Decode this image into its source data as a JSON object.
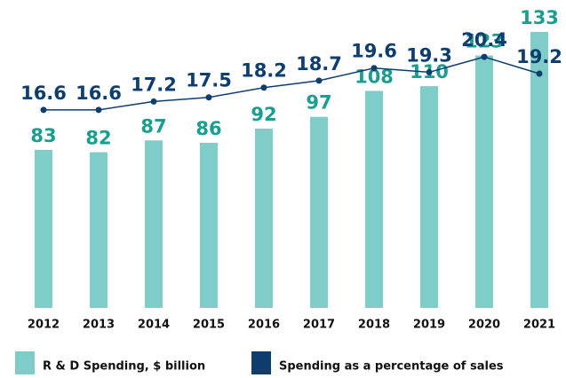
{
  "chart_data": {
    "type": "bar",
    "categories": [
      "2012",
      "2013",
      "2014",
      "2015",
      "2016",
      "2017",
      "2018",
      "2019",
      "2020",
      "2021"
    ],
    "series": [
      {
        "name": "R & D Spending, $ billion",
        "color": "#7ecdc8",
        "label_color": "#1a9e8f",
        "values": [
          83,
          82,
          87,
          86,
          92,
          97,
          108,
          110,
          123,
          133
        ]
      },
      {
        "name": "Spending as a percentage of sales",
        "type": "line",
        "axis": "y2",
        "color": "#0d3e6e",
        "values": [
          16.6,
          16.6,
          17.2,
          17.5,
          18.2,
          18.7,
          19.6,
          19.3,
          20.4,
          19.2
        ]
      }
    ],
    "ylim": [
      16,
      136
    ],
    "y2lim": [
      2.4,
      22.7
    ],
    "grid": false,
    "legend": "bottom"
  }
}
